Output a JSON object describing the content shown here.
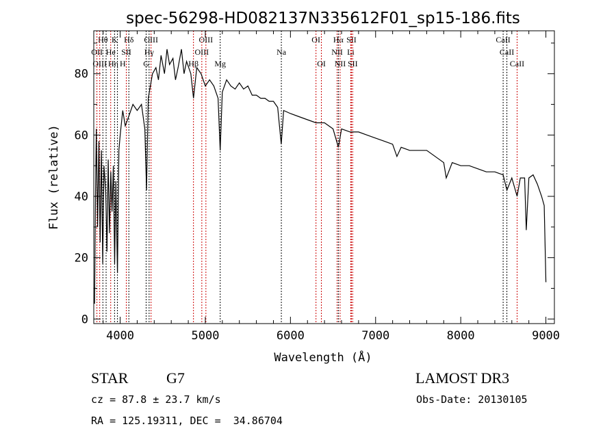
{
  "chart_data": {
    "type": "line",
    "title": "spec-56298-HD082137N335612F01_sp15-186.fits",
    "xlabel": "Wavelength (Å)",
    "ylabel": "Flux (relative)",
    "xlim": [
      3690,
      9100
    ],
    "ylim": [
      -1.5,
      94
    ],
    "xticks": [
      4000,
      5000,
      6000,
      7000,
      8000,
      9000
    ],
    "xtick_labels": [
      "4000",
      "5000",
      "6000",
      "7000",
      "8000",
      "9000"
    ],
    "yticks": [
      0,
      20,
      40,
      60,
      80
    ],
    "ytick_labels": [
      "0",
      "20",
      "40",
      "60",
      "80"
    ],
    "grid": false,
    "series": [
      {
        "name": "spectrum",
        "color": "#000000",
        "points": [
          [
            3700,
            5
          ],
          [
            3710,
            40
          ],
          [
            3720,
            62
          ],
          [
            3735,
            30
          ],
          [
            3750,
            58
          ],
          [
            3765,
            25
          ],
          [
            3780,
            55
          ],
          [
            3795,
            18
          ],
          [
            3810,
            50
          ],
          [
            3830,
            42
          ],
          [
            3845,
            22
          ],
          [
            3860,
            52
          ],
          [
            3875,
            28
          ],
          [
            3890,
            48
          ],
          [
            3905,
            35
          ],
          [
            3920,
            50
          ],
          [
            3935,
            18
          ],
          [
            3950,
            45
          ],
          [
            3968,
            15
          ],
          [
            3985,
            55
          ],
          [
            4000,
            60
          ],
          [
            4030,
            68
          ],
          [
            4060,
            63
          ],
          [
            4100,
            66
          ],
          [
            4150,
            70
          ],
          [
            4200,
            68
          ],
          [
            4250,
            70
          ],
          [
            4290,
            62
          ],
          [
            4310,
            42
          ],
          [
            4330,
            72
          ],
          [
            4380,
            80
          ],
          [
            4420,
            82
          ],
          [
            4450,
            78
          ],
          [
            4480,
            86
          ],
          [
            4520,
            80
          ],
          [
            4550,
            88
          ],
          [
            4580,
            83
          ],
          [
            4620,
            85
          ],
          [
            4650,
            78
          ],
          [
            4680,
            82
          ],
          [
            4720,
            88
          ],
          [
            4750,
            80
          ],
          [
            4780,
            84
          ],
          [
            4830,
            80
          ],
          [
            4861,
            72
          ],
          [
            4900,
            82
          ],
          [
            4950,
            80
          ],
          [
            5000,
            76
          ],
          [
            5050,
            78
          ],
          [
            5100,
            76
          ],
          [
            5150,
            72
          ],
          [
            5175,
            55
          ],
          [
            5200,
            74
          ],
          [
            5250,
            78
          ],
          [
            5300,
            76
          ],
          [
            5350,
            75
          ],
          [
            5400,
            77
          ],
          [
            5450,
            75
          ],
          [
            5500,
            76
          ],
          [
            5550,
            73
          ],
          [
            5600,
            73
          ],
          [
            5650,
            72
          ],
          [
            5700,
            72
          ],
          [
            5750,
            71
          ],
          [
            5800,
            71
          ],
          [
            5850,
            69
          ],
          [
            5892,
            57
          ],
          [
            5920,
            68
          ],
          [
            6000,
            67
          ],
          [
            6100,
            66
          ],
          [
            6200,
            65
          ],
          [
            6300,
            64
          ],
          [
            6400,
            64
          ],
          [
            6500,
            62
          ],
          [
            6563,
            56
          ],
          [
            6600,
            62
          ],
          [
            6700,
            61
          ],
          [
            6800,
            61
          ],
          [
            6900,
            60
          ],
          [
            7000,
            59
          ],
          [
            7100,
            58
          ],
          [
            7200,
            57
          ],
          [
            7250,
            53
          ],
          [
            7300,
            56
          ],
          [
            7400,
            55
          ],
          [
            7500,
            55
          ],
          [
            7600,
            55
          ],
          [
            7700,
            53
          ],
          [
            7800,
            51
          ],
          [
            7830,
            46
          ],
          [
            7900,
            51
          ],
          [
            8000,
            50
          ],
          [
            8100,
            50
          ],
          [
            8200,
            49
          ],
          [
            8300,
            48
          ],
          [
            8400,
            48
          ],
          [
            8498,
            47
          ],
          [
            8542,
            42
          ],
          [
            8600,
            46
          ],
          [
            8662,
            40
          ],
          [
            8700,
            46
          ],
          [
            8750,
            46
          ],
          [
            8770,
            29
          ],
          [
            8800,
            46
          ],
          [
            8850,
            47
          ],
          [
            8900,
            44
          ],
          [
            8950,
            40
          ],
          [
            8980,
            37
          ],
          [
            9000,
            12
          ]
        ]
      }
    ],
    "lines": [
      {
        "label": "Hθ",
        "w": 3797,
        "row": 0,
        "color": "#000000"
      },
      {
        "label": "K",
        "w": 3934,
        "row": 0,
        "color": "#000000"
      },
      {
        "label": "Hδ",
        "w": 4102,
        "row": 0,
        "color": "#000000"
      },
      {
        "label": "OIII",
        "w": 4363,
        "row": 0,
        "color": "#cc0000"
      },
      {
        "label": "OIII",
        "w": 5007,
        "row": 0,
        "color": "#cc0000"
      },
      {
        "label": "OI",
        "w": 6300,
        "row": 0,
        "color": "#cc0000"
      },
      {
        "label": "Hα",
        "w": 6563,
        "row": 0,
        "color": "#000000"
      },
      {
        "label": "SII",
        "w": 6716,
        "row": 0,
        "color": "#cc0000"
      },
      {
        "label": "CaII",
        "w": 8498,
        "row": 0,
        "color": "#000000"
      },
      {
        "label": "OII",
        "w": 3727,
        "row": 1,
        "color": "#cc0000"
      },
      {
        "label": "He",
        "w": 3889,
        "row": 1,
        "color": "#cc0000"
      },
      {
        "label": "SII",
        "w": 4072,
        "row": 1,
        "color": "#cc0000"
      },
      {
        "label": "Hγ",
        "w": 4340,
        "row": 1,
        "color": "#000000"
      },
      {
        "label": "OIII",
        "w": 4959,
        "row": 1,
        "color": "#cc0000"
      },
      {
        "label": "Na",
        "w": 5893,
        "row": 1,
        "color": "#000000"
      },
      {
        "label": "NII",
        "w": 6548,
        "row": 1,
        "color": "#cc0000"
      },
      {
        "label": "Li",
        "w": 6708,
        "row": 1,
        "color": "#cc0000"
      },
      {
        "label": "CaII",
        "w": 8542,
        "row": 1,
        "color": "#000000"
      },
      {
        "label": "OIII",
        "w": 3760,
        "row": 2,
        "color": "#cc0000"
      },
      {
        "label": "Hη",
        "w": 3835,
        "row": 2,
        "color": "#000000"
      },
      {
        "label": "H",
        "w": 3968,
        "row": 2,
        "color": "#000000"
      },
      {
        "label": "G",
        "w": 4305,
        "row": 2,
        "color": "#000000"
      },
      {
        "label": "Hβ",
        "w": 4861,
        "row": 2,
        "color": "#cc0000"
      },
      {
        "label": "Mg",
        "w": 5175,
        "row": 2,
        "color": "#000000"
      },
      {
        "label": "OI",
        "w": 6363,
        "row": 2,
        "color": "#cc0000"
      },
      {
        "label": "NII",
        "w": 6583,
        "row": 2,
        "color": "#cc0000"
      },
      {
        "label": "SII",
        "w": 6731,
        "row": 2,
        "color": "#cc0000"
      },
      {
        "label": "CaII",
        "w": 8662,
        "row": 2,
        "color": "#cc0000"
      }
    ]
  },
  "info": {
    "object_class": "STAR",
    "subclass": "G7",
    "survey": "LAMOST DR3",
    "cz": "cz = 87.8 ± 23.7 km/s",
    "obs_date": "Obs-Date: 20130105",
    "coords": "RA = 125.19311, DEC =  34.86704"
  }
}
